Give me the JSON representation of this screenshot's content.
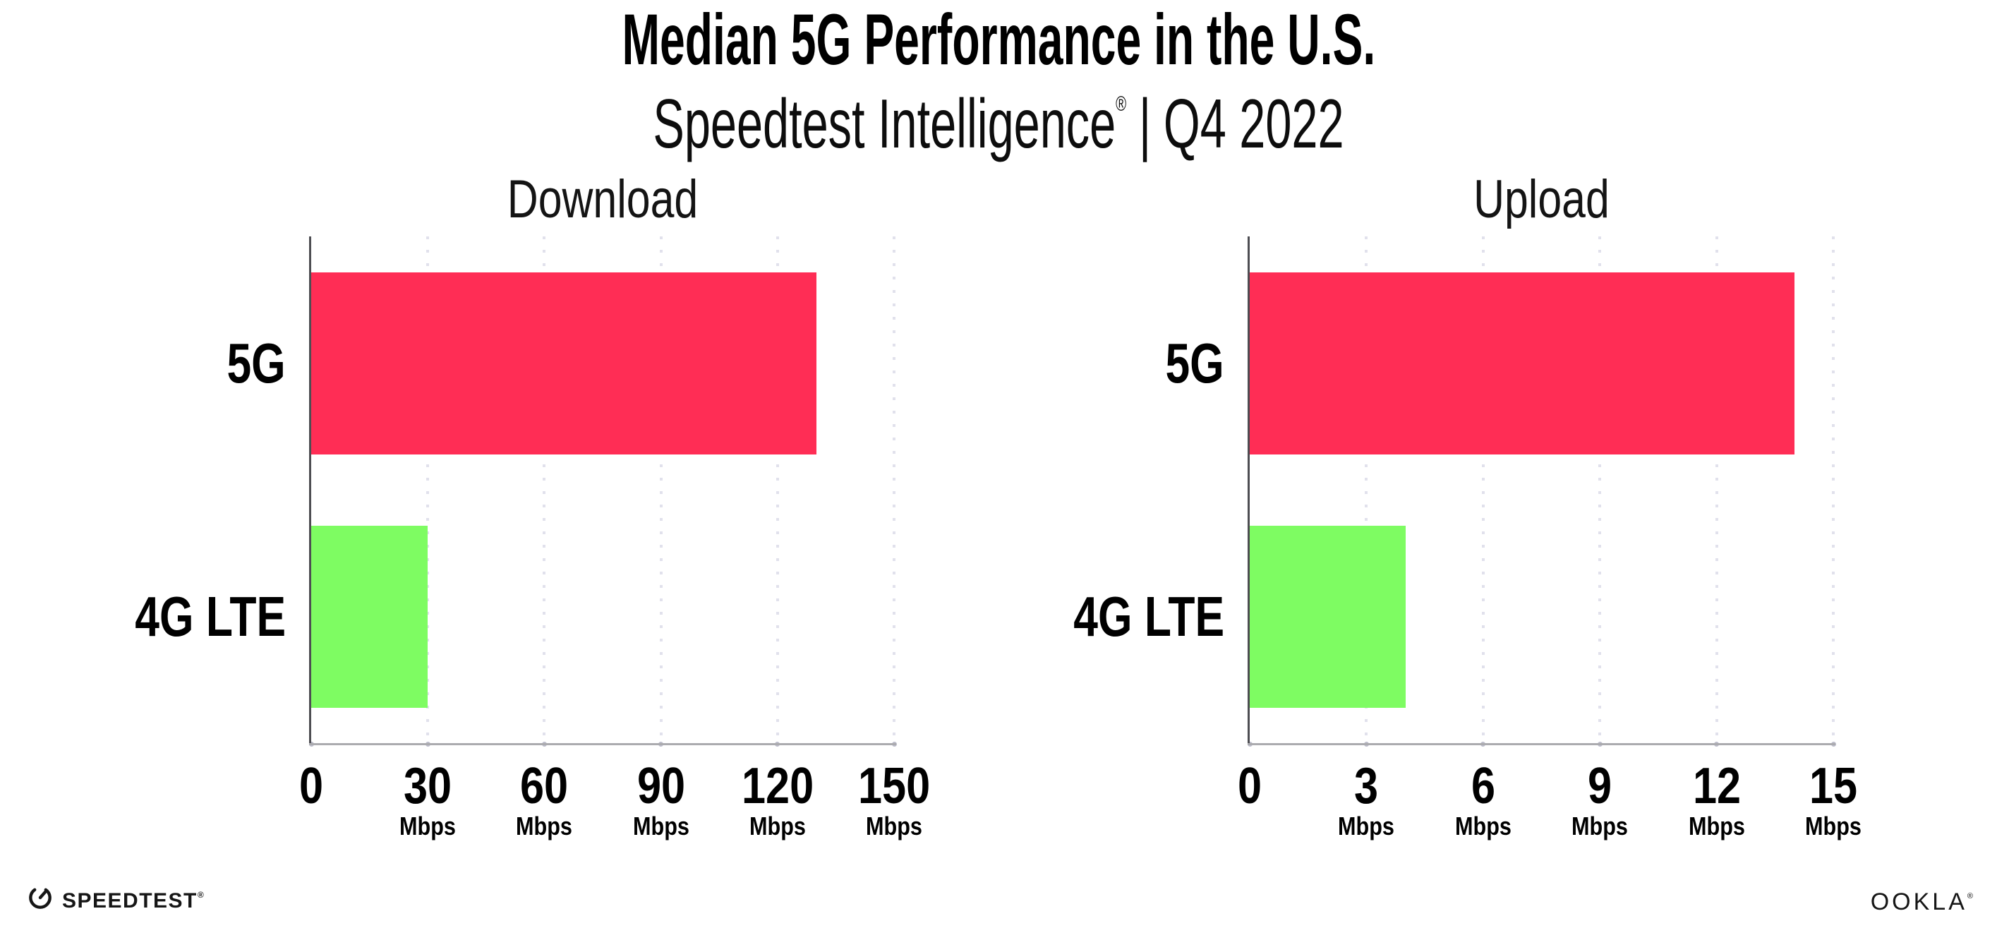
{
  "header": {
    "title": "Median 5G Performance in the U.S.",
    "subtitle": {
      "brand": "Speedtest Intelligence",
      "registered": "®",
      "separator": "|",
      "period": "Q4 2022"
    }
  },
  "chart_data": [
    {
      "type": "bar",
      "orientation": "horizontal",
      "title": "Download",
      "categories": [
        "5G",
        "4G LTE"
      ],
      "values": [
        130,
        30
      ],
      "unit": "Mbps",
      "xlim": [
        0,
        150
      ],
      "xticks": [
        0,
        30,
        60,
        90,
        120,
        150
      ],
      "bar_colors": [
        "#ff2d55",
        "#7efc62"
      ],
      "grid": "vertical dotted gridlines at each tick",
      "legend_position": "none"
    },
    {
      "type": "bar",
      "orientation": "horizontal",
      "title": "Upload",
      "categories": [
        "5G",
        "4G LTE"
      ],
      "values": [
        14,
        4
      ],
      "unit": "Mbps",
      "xlim": [
        0,
        15
      ],
      "xticks": [
        0,
        3,
        6,
        9,
        12,
        15
      ],
      "bar_colors": [
        "#ff2d55",
        "#7efc62"
      ],
      "grid": "vertical dotted gridlines at each tick",
      "legend_position": "none"
    }
  ],
  "footer": {
    "speedtest": {
      "icon": "speedtest-gauge-icon",
      "label": "SPEEDTEST",
      "mark": "®"
    },
    "ookla": {
      "label": "OOKLA",
      "mark": "®"
    }
  },
  "colors": {
    "bar_5g": "#ff2d55",
    "bar_4g_lte": "#7efc62",
    "gridline": "#e1e1ec",
    "y_axis": "#4d4d52",
    "baseline": "#ababaf",
    "tick_dot": "#bcbcca",
    "text": "#000000"
  }
}
